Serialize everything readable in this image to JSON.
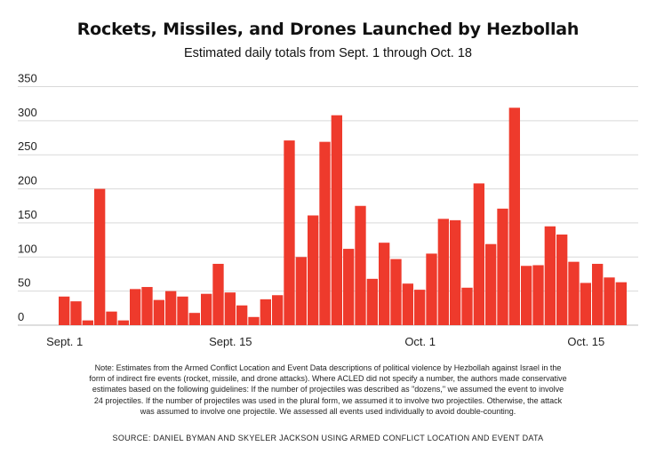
{
  "chart_data": {
    "type": "bar",
    "title": "Rockets, Missiles, and Drones Launched by Hezbollah",
    "subtitle": "Estimated daily totals from Sept. 1 through Oct. 18",
    "xlabel": "",
    "ylabel": "",
    "ylim": [
      0,
      350
    ],
    "y_ticks": [
      "0",
      "50",
      "100",
      "150",
      "200",
      "250",
      "300",
      "350"
    ],
    "x_ticks": [
      {
        "index": 0,
        "label": "Sept. 1"
      },
      {
        "index": 14,
        "label": "Sept. 15"
      },
      {
        "index": 30,
        "label": "Oct. 1"
      },
      {
        "index": 44,
        "label": "Oct. 15"
      }
    ],
    "grid": true,
    "bar_color": "#ee3a2c",
    "categories": [
      "Sept. 1",
      "Sept. 2",
      "Sept. 3",
      "Sept. 4",
      "Sept. 5",
      "Sept. 6",
      "Sept. 7",
      "Sept. 8",
      "Sept. 9",
      "Sept. 10",
      "Sept. 11",
      "Sept. 12",
      "Sept. 13",
      "Sept. 14",
      "Sept. 15",
      "Sept. 16",
      "Sept. 17",
      "Sept. 18",
      "Sept. 19",
      "Sept. 20",
      "Sept. 21",
      "Sept. 22",
      "Sept. 23",
      "Sept. 24",
      "Sept. 25",
      "Sept. 26",
      "Sept. 27",
      "Sept. 28",
      "Sept. 29",
      "Sept. 30",
      "Oct. 1",
      "Oct. 2",
      "Oct. 3",
      "Oct. 4",
      "Oct. 5",
      "Oct. 6",
      "Oct. 7",
      "Oct. 8",
      "Oct. 9",
      "Oct. 10",
      "Oct. 11",
      "Oct. 12",
      "Oct. 13",
      "Oct. 14",
      "Oct. 15",
      "Oct. 16",
      "Oct. 17",
      "Oct. 18"
    ],
    "values": [
      42,
      35,
      7,
      200,
      20,
      7,
      53,
      56,
      37,
      50,
      42,
      18,
      46,
      90,
      48,
      29,
      12,
      38,
      44,
      271,
      100,
      161,
      269,
      308,
      112,
      175,
      68,
      121,
      97,
      61,
      52,
      105,
      156,
      154,
      55,
      208,
      119,
      171,
      319,
      87,
      88,
      145,
      133,
      93,
      62,
      90,
      70,
      63
    ]
  },
  "note_lines": [
    "Note: Estimates from the Armed Conflict Location and Event Data descriptions of political violence by Hezbollah against Israel in the",
    "form of indirect fire events (rocket, missile, and drone attacks). Where ACLED did not specify a number, the authors made conservative",
    "estimates based on the following guidelines: If the number of projectiles was described as \"dozens,\" we assumed the event to involve",
    "24 projectiles. If the number of projectiles was used in the plural form, we assumed it to involve two projectiles. Otherwise, the attack",
    "was assumed to involve one projectile. We assessed all events used individually to avoid double-counting."
  ],
  "source": "SOURCE:  DANIEL BYMAN AND SKYELER JACKSON USING ARMED CONFLICT LOCATION AND EVENT DATA"
}
